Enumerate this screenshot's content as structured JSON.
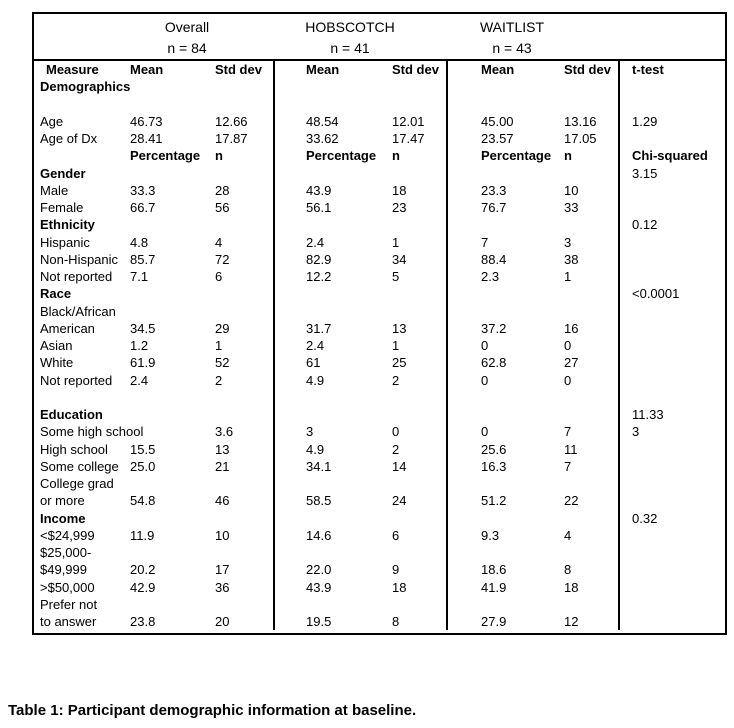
{
  "header_groups": [
    {
      "name": "Overall",
      "n": "n = 84"
    },
    {
      "name": "HOBSCOTCH",
      "n": "n = 41"
    },
    {
      "name": "WAITLIST",
      "n": "n = 43"
    }
  ],
  "subheader": {
    "measure": "Measure",
    "demographics": "Demographics",
    "mean": "Mean",
    "std_dev": "Std dev",
    "t_test": "t-test"
  },
  "rows": [
    {
      "cells": [
        "Age",
        "46.73",
        "12.66",
        "48.54",
        "12.01",
        "45.00",
        "13.16",
        "1.29"
      ]
    },
    {
      "cells": [
        "Age of Dx",
        "28.41",
        "17.87",
        "33.62",
        "17.47",
        "23.57",
        "17.05",
        ""
      ]
    },
    {
      "cells": [
        "",
        "Percentage",
        "n",
        "Percentage",
        "n",
        "Percentage",
        "n",
        "Chi-squared"
      ],
      "cells_bold": true
    },
    {
      "cells": [
        "Gender",
        "",
        "",
        "",
        "",
        "",
        "",
        "3.15"
      ],
      "label_bold": true
    },
    {
      "cells": [
        "Male",
        "33.3",
        "28",
        "43.9",
        "18",
        "23.3",
        "10",
        ""
      ]
    },
    {
      "cells": [
        "Female",
        "66.7",
        "56",
        "56.1",
        "23",
        "76.7",
        "33",
        ""
      ]
    },
    {
      "cells": [
        "Ethnicity",
        "",
        "",
        "",
        "",
        "",
        "",
        "0.12"
      ],
      "label_bold": true
    },
    {
      "cells": [
        "Hispanic",
        "4.8",
        "4",
        "2.4",
        "1",
        "7",
        "3",
        ""
      ]
    },
    {
      "cells": [
        "Non-Hispanic",
        "85.7",
        "72",
        "82.9",
        "34",
        "88.4",
        "38",
        ""
      ]
    },
    {
      "cells": [
        "Not reported",
        "7.1",
        "6",
        "12.2",
        "5",
        "2.3",
        "1",
        ""
      ]
    },
    {
      "cells": [
        "Race",
        "",
        "",
        "",
        "",
        "",
        "",
        "<0.0001"
      ],
      "label_bold": true
    },
    {
      "cells": [
        "Black/African",
        "",
        "",
        "",
        "",
        "",
        "",
        ""
      ]
    },
    {
      "cells": [
        "American",
        "34.5",
        "29",
        "31.7",
        "13",
        "37.2",
        "16",
        ""
      ]
    },
    {
      "cells": [
        "Asian",
        "1.2",
        "1",
        "2.4",
        "1",
        "0",
        "0",
        ""
      ]
    },
    {
      "cells": [
        "White",
        "61.9",
        "52",
        "61",
        "25",
        "62.8",
        "27",
        ""
      ]
    },
    {
      "cells": [
        "Not reported",
        "2.4",
        "2",
        "4.9",
        "2",
        "0",
        "0",
        ""
      ]
    },
    {
      "cells": [
        "",
        "",
        "",
        "",
        "",
        "",
        "",
        ""
      ]
    },
    {
      "cells": [
        "Education",
        "",
        "",
        "",
        "",
        "",
        "",
        "11.33"
      ],
      "label_bold": true
    },
    {
      "cells": [
        "Some high school",
        "",
        "3.6",
        "3",
        "0",
        "0",
        "7",
        "3"
      ]
    },
    {
      "cells": [
        "High school",
        "15.5",
        "13",
        "4.9",
        "2",
        "25.6",
        "11",
        ""
      ]
    },
    {
      "cells": [
        "Some college",
        "25.0",
        "21",
        "34.1",
        "14",
        "16.3",
        "7",
        ""
      ]
    },
    {
      "cells": [
        "College grad",
        "",
        "",
        "",
        "",
        "",
        "",
        ""
      ]
    },
    {
      "cells": [
        "or more",
        "54.8",
        "46",
        "58.5",
        "24",
        "51.2",
        "22",
        ""
      ]
    },
    {
      "cells": [
        "Income",
        "",
        "",
        "",
        "",
        "",
        "",
        "0.32"
      ],
      "label_bold": true
    },
    {
      "cells": [
        "<$24,999",
        "11.9",
        "10",
        "14.6",
        "6",
        "9.3",
        "4",
        ""
      ]
    },
    {
      "cells": [
        "$25,000-",
        "",
        "",
        "",
        "",
        "",
        "",
        ""
      ]
    },
    {
      "cells": [
        "$49,999",
        "20.2",
        "17",
        "22.0",
        "9",
        "18.6",
        "8",
        ""
      ]
    },
    {
      "cells": [
        ">$50,000",
        "42.9",
        "36",
        "43.9",
        "18",
        "41.9",
        "18",
        ""
      ]
    },
    {
      "cells": [
        "Prefer not",
        "",
        "",
        "",
        "",
        "",
        "",
        ""
      ]
    },
    {
      "cells": [
        "to answer",
        "23.8",
        "20",
        "19.5",
        "8",
        "27.9",
        "12",
        ""
      ]
    }
  ],
  "caption": "Table 1: Participant demographic information at baseline."
}
